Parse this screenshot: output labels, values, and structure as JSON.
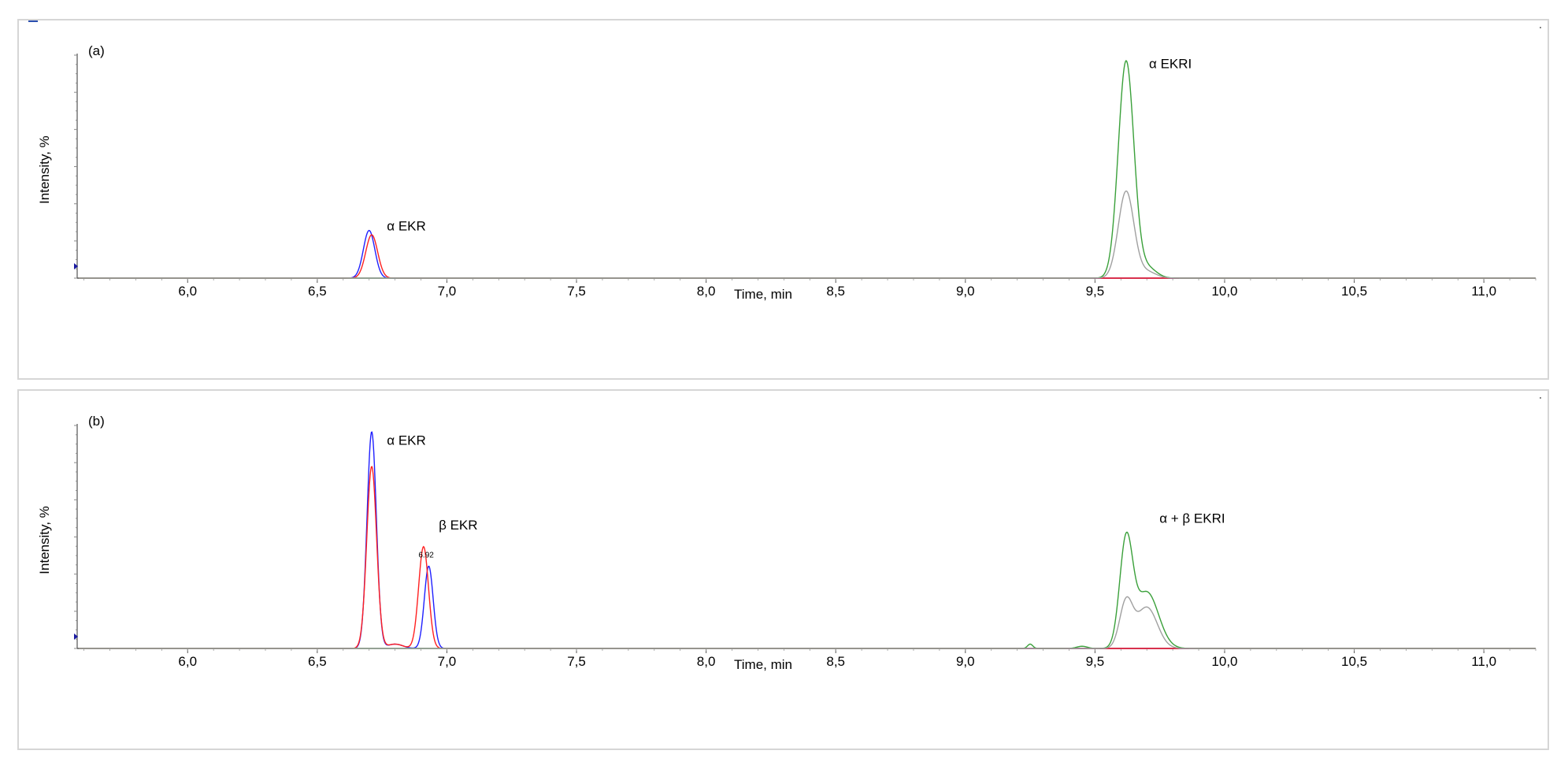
{
  "chart_data": [
    {
      "type": "line",
      "panel_label": "(a)",
      "xlabel": "Time, min",
      "ylabel": "Intensity, %",
      "xlim": [
        5.58,
        11.2
      ],
      "ylim": [
        0,
        100
      ],
      "xticks": [
        "6,0",
        "6,5",
        "7,0",
        "7,5",
        "8,0",
        "8,5",
        "9,0",
        "9,5",
        "10,0",
        "10,5",
        "11,0"
      ],
      "series": [
        {
          "color": "#2020ff",
          "peaks": [
            {
              "center": 6.7,
              "height": 22,
              "width": 0.022
            }
          ]
        },
        {
          "color": "#ff2020",
          "peaks": [
            {
              "center": 6.71,
              "height": 20,
              "width": 0.023
            }
          ]
        },
        {
          "color": "#3aa03a",
          "peaks": [
            {
              "center": 9.62,
              "height": 100,
              "width": 0.03
            },
            {
              "center": 9.7,
              "height": 5,
              "width": 0.035
            }
          ]
        },
        {
          "color": "#a0a0a0",
          "peaks": [
            {
              "center": 9.62,
              "height": 40,
              "width": 0.03
            },
            {
              "center": 9.7,
              "height": 3,
              "width": 0.035
            }
          ]
        }
      ],
      "annotations": [
        {
          "text": "α EKR",
          "x": 6.72,
          "y": 22
        },
        {
          "text": "α EKRI",
          "x": 9.66,
          "y": 97
        }
      ]
    },
    {
      "type": "line",
      "panel_label": "(b)",
      "xlabel": "Time, min",
      "ylabel": "Intensity, %",
      "xlim": [
        5.58,
        11.2
      ],
      "ylim": [
        0,
        100
      ],
      "xticks": [
        "6,0",
        "6,5",
        "7,0",
        "7,5",
        "8,0",
        "8,5",
        "9,0",
        "9,5",
        "10,0",
        "10,5",
        "11,0"
      ],
      "series": [
        {
          "color": "#2020ff",
          "peaks": [
            {
              "center": 6.71,
              "height": 100,
              "width": 0.018
            },
            {
              "center": 6.8,
              "height": 2,
              "width": 0.03
            },
            {
              "center": 6.93,
              "height": 38,
              "width": 0.017
            }
          ]
        },
        {
          "color": "#ff2020",
          "peaks": [
            {
              "center": 6.71,
              "height": 84,
              "width": 0.019
            },
            {
              "center": 6.8,
              "height": 2,
              "width": 0.03
            },
            {
              "center": 6.91,
              "height": 47,
              "width": 0.019
            }
          ]
        },
        {
          "color": "#3aa03a",
          "peaks": [
            {
              "center": 9.25,
              "height": 2,
              "width": 0.01
            },
            {
              "center": 9.45,
              "height": 1,
              "width": 0.02
            },
            {
              "center": 9.62,
              "height": 48,
              "width": 0.025
            },
            {
              "center": 9.7,
              "height": 26,
              "width": 0.045
            }
          ]
        },
        {
          "color": "#a0a0a0",
          "peaks": [
            {
              "center": 9.62,
              "height": 21,
              "width": 0.025
            },
            {
              "center": 9.7,
              "height": 19,
              "width": 0.04
            }
          ]
        }
      ],
      "annotations": [
        {
          "text": "α EKR",
          "x": 6.72,
          "y": 94
        },
        {
          "text": "β EKR",
          "x": 6.92,
          "y": 55
        },
        {
          "text": "6.92",
          "x": 6.92,
          "y": 42
        },
        {
          "text": "α + β EKRI",
          "x": 9.7,
          "y": 58
        }
      ]
    }
  ]
}
